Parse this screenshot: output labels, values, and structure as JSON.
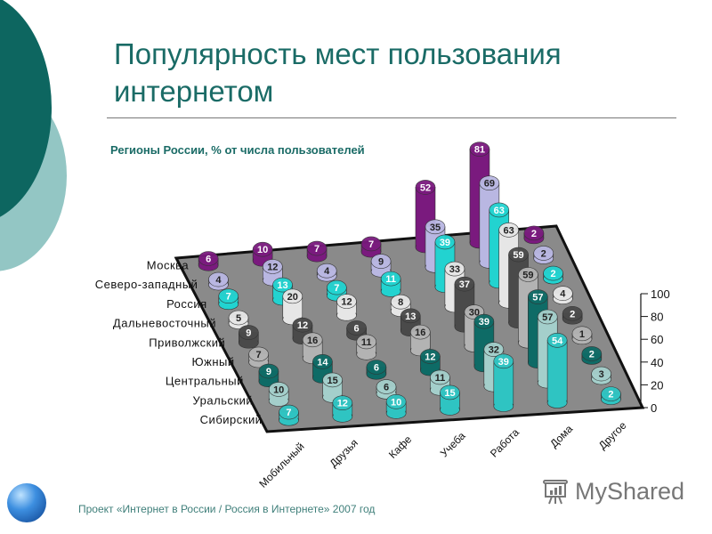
{
  "slide": {
    "title": "Популярность мест пользования интернетом",
    "subtitle": "Регионы России, % от числа пользователей",
    "footer": "Проект «Интернет в России / Россия в Интернете»  2007 год",
    "brand": "MyShared"
  },
  "chart_data": {
    "type": "bar",
    "variant": "3d-cylinder",
    "title": "Популярность мест пользования интернетом",
    "subtitle": "Регионы России, % от числа пользователей",
    "categories": [
      "Мобильный",
      "Друзья",
      "Кафе",
      "Учеба",
      "Работа",
      "Дома",
      "Другое"
    ],
    "series": [
      {
        "name": "Москва",
        "color": "#7a1a7e",
        "values": [
          6,
          10,
          7,
          7,
          52,
          81,
          2
        ]
      },
      {
        "name": "Северо-западный",
        "color": "#b9b7e2",
        "values": [
          4,
          12,
          4,
          9,
          35,
          69,
          2
        ]
      },
      {
        "name": "Россия",
        "color": "#22d3d0",
        "values": [
          7,
          13,
          7,
          11,
          39,
          63,
          2
        ]
      },
      {
        "name": "Дальневосточный",
        "color": "#e6e6e6",
        "values": [
          5,
          20,
          12,
          8,
          33,
          63,
          4
        ]
      },
      {
        "name": "Приволжский",
        "color": "#4a4a4a",
        "values": [
          9,
          12,
          6,
          13,
          37,
          59,
          2
        ]
      },
      {
        "name": "Южный",
        "color": "#b3b3b3",
        "values": [
          7,
          16,
          11,
          16,
          30,
          59,
          1
        ]
      },
      {
        "name": "Центральный",
        "color": "#0e6b66",
        "values": [
          9,
          14,
          6,
          12,
          39,
          57,
          2
        ]
      },
      {
        "name": "Уральский",
        "color": "#a4cfcb",
        "values": [
          10,
          15,
          6,
          11,
          32,
          57,
          3
        ]
      },
      {
        "name": "Сибирский",
        "color": "#2fc4c2",
        "values": [
          7,
          12,
          10,
          15,
          39,
          54,
          2
        ]
      }
    ],
    "xlabel": "",
    "ylabel": "",
    "ylim": [
      0,
      100
    ],
    "yticks": [
      0,
      20,
      40,
      60,
      80,
      100
    ],
    "grid": false,
    "legend": "row labels on left depth axis"
  }
}
